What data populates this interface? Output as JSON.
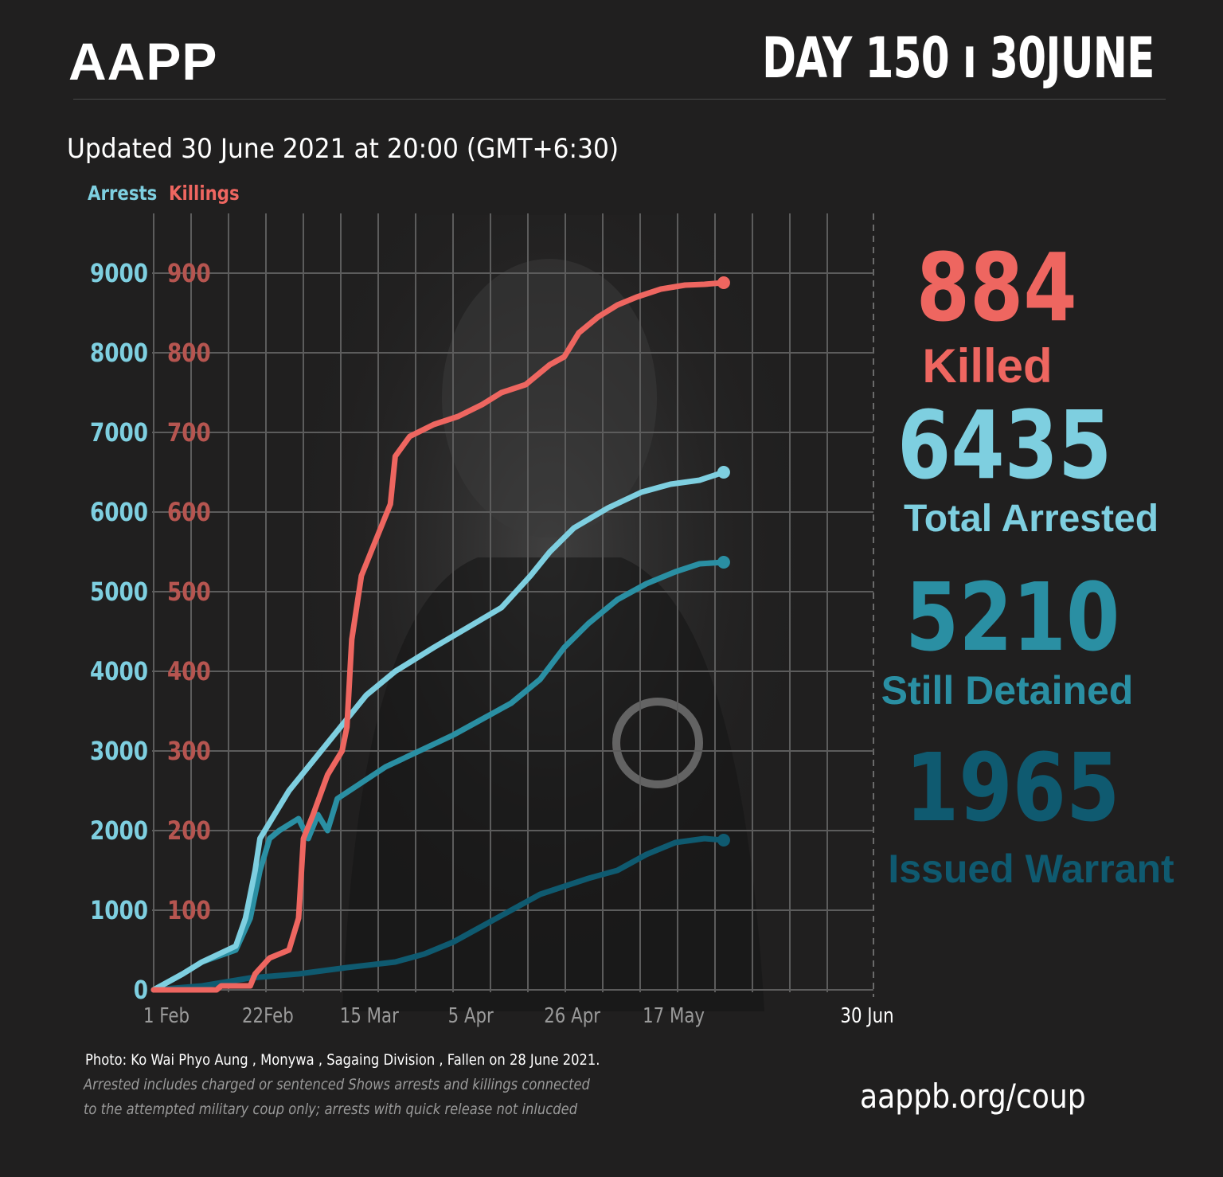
{
  "header": {
    "brand": "AAPP",
    "day_label": "DAY 150 ı 30JUNE",
    "updated": "Updated 30 June 2021 at 20:00 (GMT+6:30)"
  },
  "legend": {
    "arrests": "Arrests",
    "killings": "Killings"
  },
  "stats": {
    "killed_value": "884",
    "killed_label": "Killed",
    "arrested_value": "6435",
    "arrested_label": "Total Arrested",
    "detained_value": "5210",
    "detained_label": "Still Detained",
    "warrant_value": "1965",
    "warrant_label": "Issued Warrant"
  },
  "footer": {
    "photo_credit": "Photo:  Ko Wai Phyo Aung  , Monywa , Sagaing Division , Fallen on 28 June 2021.",
    "note_line1": "Arrested includes charged or sentenced Shows arrests and killings connected",
    "note_line2": "to the attempted military coup only; arrests with quick release not inlucded",
    "website": "aappb.org/coup"
  },
  "colors": {
    "killings": "#ee6660",
    "arrested": "#7ecfe0",
    "detained": "#2a8fa3",
    "warrant": "#0f5a70",
    "background": "#201f1f"
  },
  "chart_data": {
    "type": "line",
    "x_tick_labels": [
      "1 Feb",
      "22Feb",
      "15 Mar",
      "5 Apr",
      "26 Apr",
      "17 May",
      "30 Jun"
    ],
    "x_tick_days": [
      0,
      21,
      42,
      63,
      84,
      105,
      149
    ],
    "xlim": [
      0,
      149
    ],
    "y_left": {
      "label": "Arrests",
      "ticks": [
        "0",
        "1000",
        "2000",
        "3000",
        "4000",
        "5000",
        "6000",
        "7000",
        "8000",
        "9000"
      ],
      "ylim": [
        0,
        9000
      ]
    },
    "y_right": {
      "label": "Killings",
      "ticks": [
        "100",
        "200",
        "300",
        "400",
        "500",
        "600",
        "700",
        "800",
        "900"
      ],
      "ylim": [
        0,
        900
      ]
    },
    "grid": true,
    "series": [
      {
        "name": "Killed",
        "axis": "killings",
        "color": "#ee6660",
        "points": [
          [
            0,
            0
          ],
          [
            13,
            0
          ],
          [
            14,
            5
          ],
          [
            20,
            5
          ],
          [
            21,
            20
          ],
          [
            24,
            40
          ],
          [
            28,
            50
          ],
          [
            30,
            90
          ],
          [
            31,
            190
          ],
          [
            33,
            220
          ],
          [
            36,
            270
          ],
          [
            39,
            300
          ],
          [
            40,
            330
          ],
          [
            41,
            440
          ],
          [
            43,
            520
          ],
          [
            45,
            550
          ],
          [
            49,
            610
          ],
          [
            50,
            670
          ],
          [
            53,
            695
          ],
          [
            58,
            710
          ],
          [
            63,
            720
          ],
          [
            68,
            735
          ],
          [
            72,
            750
          ],
          [
            77,
            760
          ],
          [
            82,
            785
          ],
          [
            85,
            795
          ],
          [
            88,
            825
          ],
          [
            92,
            845
          ],
          [
            96,
            860
          ],
          [
            100,
            870
          ],
          [
            105,
            880
          ],
          [
            110,
            885
          ],
          [
            114,
            886
          ],
          [
            118,
            888
          ]
        ]
      },
      {
        "name": "Total Arrested",
        "axis": "arrests",
        "color": "#7ecfe0",
        "points": [
          [
            0,
            0
          ],
          [
            3,
            100
          ],
          [
            6,
            200
          ],
          [
            10,
            350
          ],
          [
            17,
            550
          ],
          [
            19,
            900
          ],
          [
            21,
            1500
          ],
          [
            22,
            1900
          ],
          [
            25,
            2200
          ],
          [
            28,
            2500
          ],
          [
            32,
            2800
          ],
          [
            36,
            3100
          ],
          [
            40,
            3400
          ],
          [
            44,
            3700
          ],
          [
            50,
            4000
          ],
          [
            58,
            4300
          ],
          [
            65,
            4550
          ],
          [
            72,
            4800
          ],
          [
            78,
            5200
          ],
          [
            82,
            5500
          ],
          [
            87,
            5800
          ],
          [
            94,
            6050
          ],
          [
            101,
            6250
          ],
          [
            107,
            6350
          ],
          [
            113,
            6400
          ],
          [
            118,
            6500
          ]
        ]
      },
      {
        "name": "Still Detained",
        "axis": "arrests",
        "color": "#2a8fa3",
        "points": [
          [
            0,
            0
          ],
          [
            3,
            100
          ],
          [
            6,
            200
          ],
          [
            10,
            350
          ],
          [
            17,
            500
          ],
          [
            20,
            900
          ],
          [
            22,
            1500
          ],
          [
            24,
            1900
          ],
          [
            26,
            2000
          ],
          [
            30,
            2150
          ],
          [
            32,
            1900
          ],
          [
            34,
            2200
          ],
          [
            36,
            2000
          ],
          [
            38,
            2400
          ],
          [
            43,
            2600
          ],
          [
            48,
            2800
          ],
          [
            55,
            3000
          ],
          [
            62,
            3200
          ],
          [
            68,
            3400
          ],
          [
            74,
            3600
          ],
          [
            80,
            3900
          ],
          [
            85,
            4300
          ],
          [
            90,
            4600
          ],
          [
            96,
            4900
          ],
          [
            102,
            5100
          ],
          [
            108,
            5250
          ],
          [
            113,
            5350
          ],
          [
            118,
            5370
          ]
        ]
      },
      {
        "name": "Issued Warrant",
        "axis": "arrests",
        "color": "#0f5a70",
        "points": [
          [
            0,
            0
          ],
          [
            10,
            50
          ],
          [
            20,
            150
          ],
          [
            30,
            200
          ],
          [
            40,
            280
          ],
          [
            50,
            350
          ],
          [
            56,
            450
          ],
          [
            62,
            600
          ],
          [
            68,
            800
          ],
          [
            74,
            1000
          ],
          [
            80,
            1200
          ],
          [
            85,
            1300
          ],
          [
            90,
            1400
          ],
          [
            96,
            1500
          ],
          [
            102,
            1700
          ],
          [
            108,
            1850
          ],
          [
            114,
            1900
          ],
          [
            118,
            1880
          ]
        ]
      }
    ]
  }
}
